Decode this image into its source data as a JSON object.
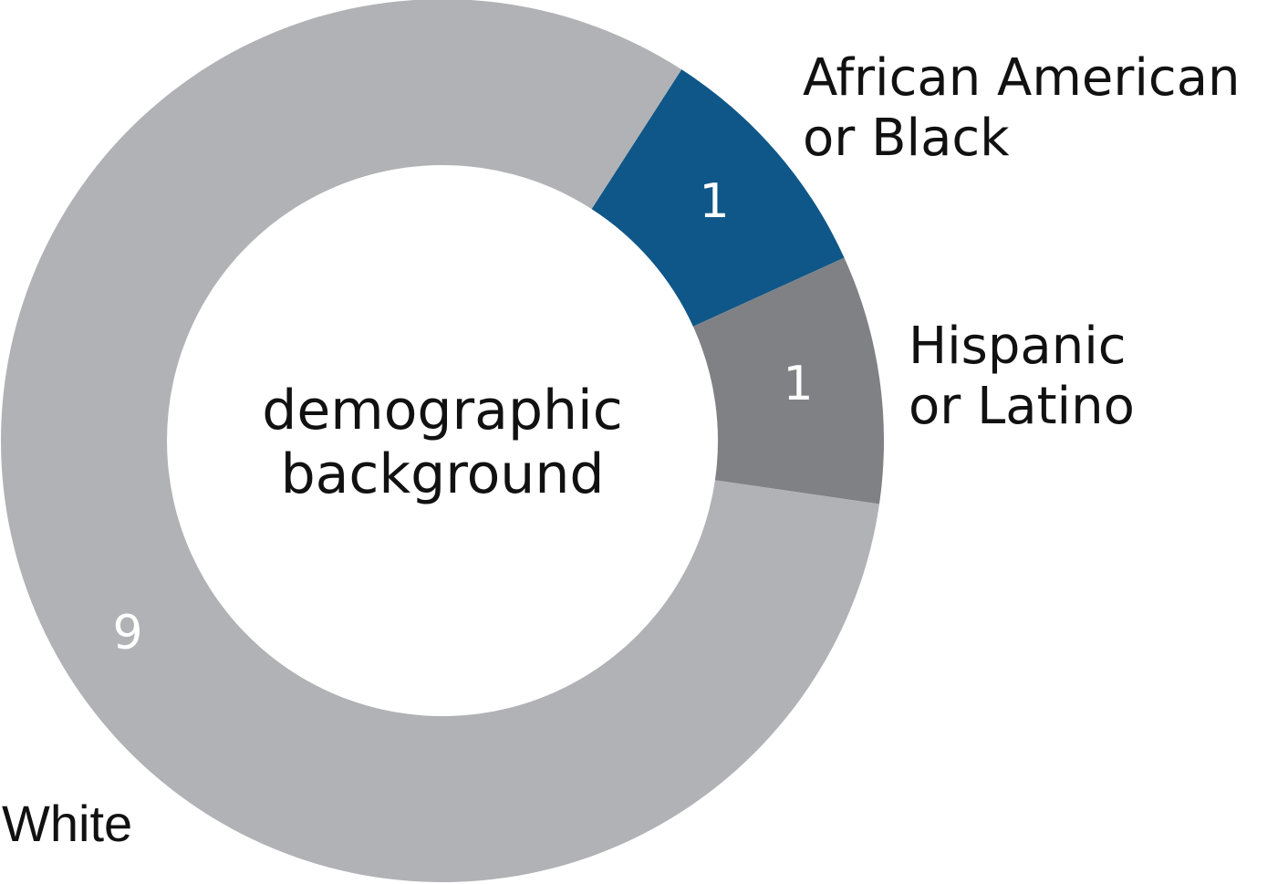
{
  "chart_data": {
    "type": "donut",
    "center_label": [
      "demographic",
      "background"
    ],
    "categories": [
      [
        "African American",
        "or Black"
      ],
      [
        "Hispanic",
        "or Latino"
      ],
      [
        "White"
      ]
    ],
    "values": [
      1,
      1,
      9
    ],
    "colors": [
      "#0f5788",
      "#808185",
      "#b1b2b5"
    ]
  }
}
